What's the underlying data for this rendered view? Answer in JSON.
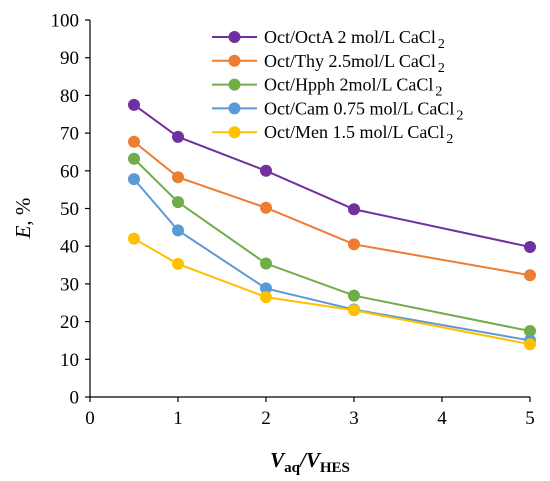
{
  "chart_data": {
    "type": "line",
    "title": "",
    "xlabel": {
      "main": "V",
      "sub1": "aq",
      "mid": "/V",
      "sub2": "HES"
    },
    "ylabel": {
      "main": "E",
      "rest": ", %"
    },
    "xlim": [
      0,
      5
    ],
    "ylim": [
      0,
      100
    ],
    "xticks": [
      0,
      1,
      2,
      3,
      4,
      5
    ],
    "yticks": [
      0,
      10,
      20,
      30,
      40,
      50,
      60,
      70,
      80,
      90,
      100
    ],
    "grid": false,
    "legend_position": "top-right",
    "x": [
      0.5,
      1,
      2,
      3,
      5
    ],
    "series": [
      {
        "name": "Oct/OctA 2 mol/L CaCl",
        "name_sub": "2",
        "color": "#7030a0",
        "values": [
          77.5,
          69,
          60,
          49.8,
          39.8
        ]
      },
      {
        "name": "Oct/Thy 2.5mol/L CaCl",
        "name_sub": "2",
        "color": "#ed7d31",
        "values": [
          67.7,
          58.3,
          50.2,
          40.5,
          32.3
        ]
      },
      {
        "name": "Oct/Hpph 2mol/L CaCl",
        "name_sub": "2",
        "color": "#70ad47",
        "values": [
          63.2,
          51.7,
          35.4,
          26.9,
          17.5
        ]
      },
      {
        "name": "Oct/Cam 0.75 mol/L CaCl",
        "name_sub": "2",
        "color": "#5b9bd5",
        "values": [
          57.8,
          44.2,
          28.8,
          23.2,
          15
        ]
      },
      {
        "name": "Oct/Men 1.5 mol/L CaCl",
        "name_sub": "2",
        "color": "#ffc000",
        "values": [
          42,
          35.3,
          26.5,
          23,
          14
        ]
      }
    ]
  }
}
